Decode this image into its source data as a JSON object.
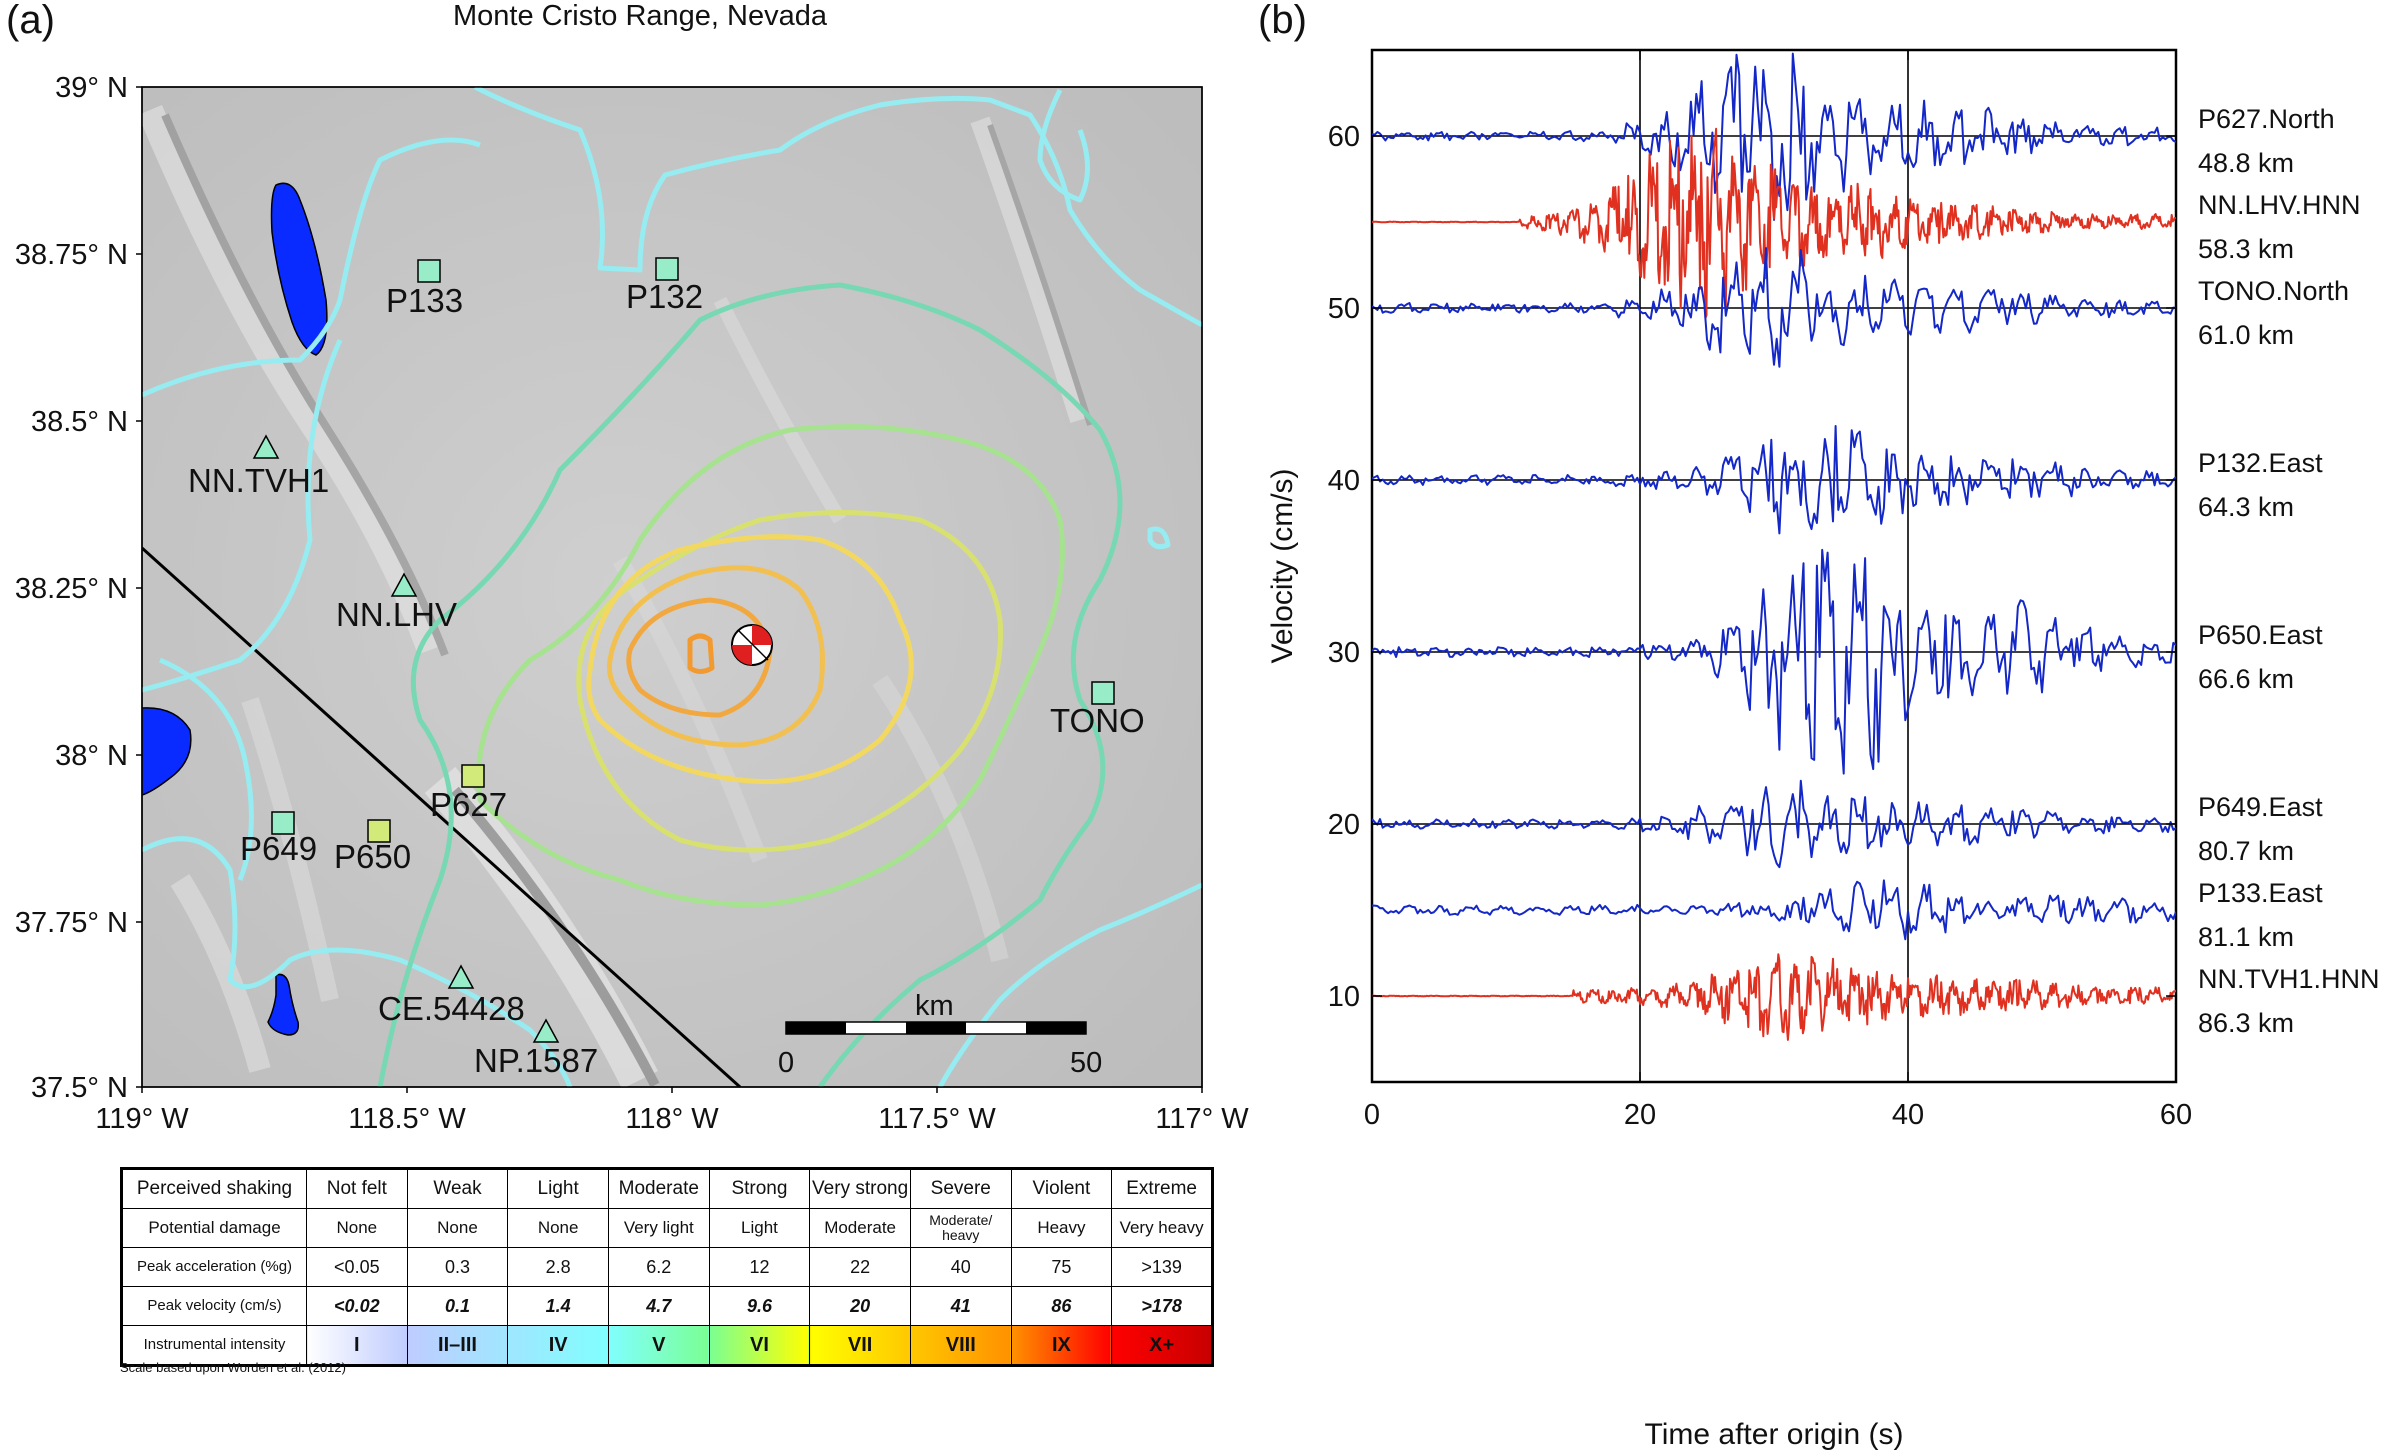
{
  "panel_a": {
    "label": "(a)",
    "title": "Monte Cristo Range, Nevada",
    "lat_ticks": [
      "39° N",
      "38.75° N",
      "38.5° N",
      "38.25° N",
      "38° N",
      "37.75° N",
      "37.5° N"
    ],
    "lon_ticks": [
      "119° W",
      "118.5° W",
      "118° W",
      "117.5° W",
      "117° W"
    ],
    "stations": [
      {
        "name": "P133",
        "symbol": "square"
      },
      {
        "name": "P132",
        "symbol": "square"
      },
      {
        "name": "NN.TVH1",
        "symbol": "triangle"
      },
      {
        "name": "NN.LHV",
        "symbol": "triangle"
      },
      {
        "name": "TONO",
        "symbol": "square"
      },
      {
        "name": "P627",
        "symbol": "square"
      },
      {
        "name": "P649",
        "symbol": "square"
      },
      {
        "name": "P650",
        "symbol": "square"
      },
      {
        "name": "CE.54428",
        "symbol": "triangle"
      },
      {
        "name": "NP.1587",
        "symbol": "triangle"
      }
    ],
    "scale_bar": {
      "unit": "km",
      "min_label": "0",
      "max_label": "50"
    },
    "colors": {
      "water": "#0a2bff",
      "map_bg": "#c9c9c9",
      "fault": "#000000"
    }
  },
  "mmi_table": {
    "rows": [
      {
        "head": "Perceived shaking",
        "cells": [
          "Not felt",
          "Weak",
          "Light",
          "Moderate",
          "Strong",
          "Very strong",
          "Severe",
          "Violent",
          "Extreme"
        ]
      },
      {
        "head": "Potential damage",
        "cells": [
          "None",
          "None",
          "None",
          "Very light",
          "Light",
          "Moderate",
          "Moderate/ heavy",
          "Heavy",
          "Very heavy"
        ]
      },
      {
        "head": "Peak acceleration (%g)",
        "cells": [
          "<0.05",
          "0.3",
          "2.8",
          "6.2",
          "12",
          "22",
          "40",
          "75",
          ">139"
        ]
      },
      {
        "head": "Peak velocity (cm/s)",
        "cells": [
          "<0.02",
          "0.1",
          "1.4",
          "4.7",
          "9.6",
          "20",
          "41",
          "86",
          ">178"
        ]
      },
      {
        "head": "Instrumental intensity",
        "cells": [
          "I",
          "II–III",
          "IV",
          "V",
          "VI",
          "VII",
          "VIII",
          "IX",
          "X+"
        ]
      }
    ],
    "intensity_colors": [
      "#ffffff",
      "#bfccff",
      "#a0e6ff",
      "#80ffff",
      "#7aff93",
      "#ffff00",
      "#ffc800",
      "#ff9100",
      "#ff0000",
      "#c80000"
    ],
    "credit": "Scale based upon Worden et al. (2012)"
  },
  "panel_b": {
    "label": "(b)",
    "chart_data": {
      "type": "line",
      "xlabel": "Time after origin (s)",
      "ylabel": "Velocity (cm/s)",
      "xlim": [
        0,
        60
      ],
      "ylim": [
        5,
        65
      ],
      "x_ticks": [
        0,
        20,
        40,
        60
      ],
      "y_ticks": [
        10,
        20,
        30,
        40,
        50,
        60
      ],
      "vertical_lines_x": [
        20,
        40
      ],
      "series": [
        {
          "name": "P627.North",
          "distance": "48.8 km",
          "baseline": 60,
          "color": "#1428c8",
          "onset_s": 18,
          "peak_amp": 4.5,
          "peak_time_s": 29
        },
        {
          "name": "NN.LHV.HNN",
          "distance": "58.3 km",
          "baseline": 55,
          "color": "#e03020",
          "onset_s": 11,
          "peak_amp": 4.5,
          "peak_time_s": 24
        },
        {
          "name": "TONO.North",
          "distance": "61.0 km",
          "baseline": 50,
          "color": "#1428c8",
          "onset_s": 18,
          "peak_amp": 3,
          "peak_time_s": 29
        },
        {
          "name": "P132.East",
          "distance": "64.3 km",
          "baseline": 40,
          "color": "#1428c8",
          "onset_s": 18,
          "peak_amp": 3,
          "peak_time_s": 33
        },
        {
          "name": "P650.East",
          "distance": "66.6 km",
          "baseline": 30,
          "color": "#1428c8",
          "onset_s": 20,
          "peak_amp": 7,
          "peak_time_s": 34
        },
        {
          "name": "P649.East",
          "distance": "80.7 km",
          "baseline": 20,
          "color": "#1428c8",
          "onset_s": 19,
          "peak_amp": 2,
          "peak_time_s": 31
        },
        {
          "name": "P133.East",
          "distance": "81.1 km",
          "baseline": 15,
          "color": "#1428c8",
          "onset_s": 24,
          "peak_amp": 1.2,
          "peak_time_s": 38
        },
        {
          "name": "NN.TVH1.HNN",
          "distance": "86.3 km",
          "baseline": 10,
          "color": "#e03020",
          "onset_s": 15,
          "peak_amp": 1.8,
          "peak_time_s": 31
        }
      ]
    }
  }
}
